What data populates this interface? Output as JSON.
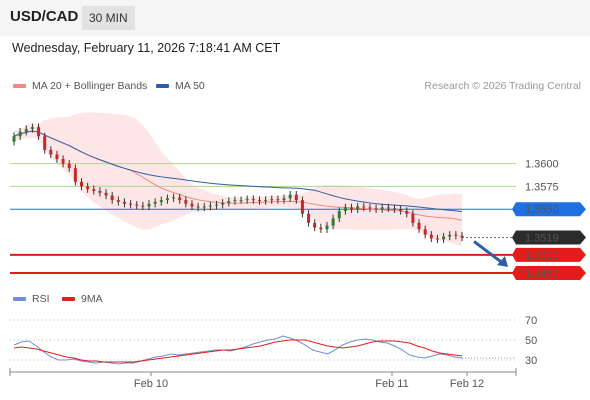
{
  "header": {
    "pair": "USD/CAD",
    "timeframe": "30 MIN"
  },
  "timestamp": "Wednesday, February 11, 2026 7:18:41 AM CET",
  "legend": {
    "ma20": "MA 20 + Bollinger Bands",
    "ma50": "MA 50",
    "copyright": "Research © 2026 Trading Central"
  },
  "rsi_legend": {
    "rsi": "RSI",
    "ma9": "9MA"
  },
  "colors": {
    "ma20": "#f08a80",
    "ma50": "#2f5ea8",
    "band_fill": "#fde2e0",
    "candle_up": "#2e7d32",
    "candle_down": "#c62828",
    "level_green": "#a9d88c",
    "level_blue": "#1f6fe0",
    "level_red": "#e51c1c",
    "current_price": "#333333",
    "rsi": "#6f8fd6",
    "rsi_ma": "#e51c1c"
  },
  "chart_data": [
    {
      "type": "candlestick",
      "title": "USD/CAD 30 MIN",
      "x_ticks": [
        "Feb 10",
        "Feb 11",
        "Feb 12"
      ],
      "ylim": [
        1.3468,
        1.365
      ],
      "close": [
        1.363,
        1.3635,
        1.3638,
        1.364,
        1.363,
        1.3615,
        1.361,
        1.3605,
        1.36,
        1.3595,
        1.358,
        1.3575,
        1.3572,
        1.357,
        1.3568,
        1.3565,
        1.356,
        1.3558,
        1.3556,
        1.3555,
        1.3554,
        1.3553,
        1.3556,
        1.3558,
        1.356,
        1.3562,
        1.3563,
        1.356,
        1.3556,
        1.3553,
        1.3552,
        1.3553,
        1.3554,
        1.3555,
        1.3557,
        1.3559,
        1.356,
        1.356,
        1.3561,
        1.356,
        1.3559,
        1.356,
        1.3561,
        1.356,
        1.3562,
        1.3566,
        1.356,
        1.3545,
        1.3535,
        1.353,
        1.3528,
        1.3532,
        1.354,
        1.3548,
        1.3552,
        1.355,
        1.3553,
        1.3552,
        1.3551,
        1.355,
        1.3552,
        1.3551,
        1.355,
        1.3548,
        1.3545,
        1.3535,
        1.3528,
        1.3522,
        1.3518,
        1.3517,
        1.352,
        1.3522,
        1.3521,
        1.3519
      ],
      "levels": [
        {
          "value": 1.36,
          "label": "1.3600",
          "kind": "resistance"
        },
        {
          "value": 1.3575,
          "label": "1.3575",
          "kind": "resistance"
        },
        {
          "value": 1.355,
          "label": "1.3550",
          "kind": "pivot"
        },
        {
          "value": 1.3519,
          "label": "1.3519",
          "kind": "last"
        },
        {
          "value": 1.35,
          "label": "1.3500",
          "kind": "support"
        },
        {
          "value": 1.348,
          "label": "1.3480",
          "kind": "support"
        }
      ],
      "target": 1.348,
      "series": [
        {
          "name": "MA 20 + Bollinger Bands"
        },
        {
          "name": "MA 50"
        }
      ]
    },
    {
      "type": "line",
      "title": "RSI",
      "ylim": [
        20,
        80
      ],
      "y_ticks": [
        30,
        50,
        70
      ],
      "series": [
        {
          "name": "RSI",
          "values": [
            45,
            48,
            49,
            44,
            38,
            33,
            30,
            30,
            31,
            29,
            28,
            27,
            28,
            27,
            26,
            27,
            27,
            29,
            31,
            33,
            34,
            36,
            35,
            36,
            37,
            38,
            39,
            40,
            40,
            39,
            41,
            43,
            46,
            48,
            50,
            51,
            54,
            52,
            49,
            45,
            40,
            38,
            36,
            40,
            45,
            48,
            50,
            51,
            50,
            48,
            47,
            44,
            40,
            35,
            33,
            32,
            34,
            36,
            35,
            33,
            32
          ]
        },
        {
          "name": "9MA",
          "values": [
            42,
            43,
            42,
            41,
            39,
            37,
            35,
            33,
            32,
            30,
            29,
            29,
            28,
            28,
            28,
            28,
            28,
            29,
            30,
            31,
            32,
            33,
            34,
            35,
            36,
            37,
            38,
            39,
            40,
            40,
            41,
            42,
            43,
            44,
            46,
            48,
            49,
            50,
            50,
            50,
            48,
            46,
            44,
            43,
            42,
            43,
            44,
            46,
            48,
            49,
            49,
            49,
            48,
            47,
            44,
            42,
            39,
            37,
            36,
            35,
            34
          ]
        }
      ]
    }
  ]
}
